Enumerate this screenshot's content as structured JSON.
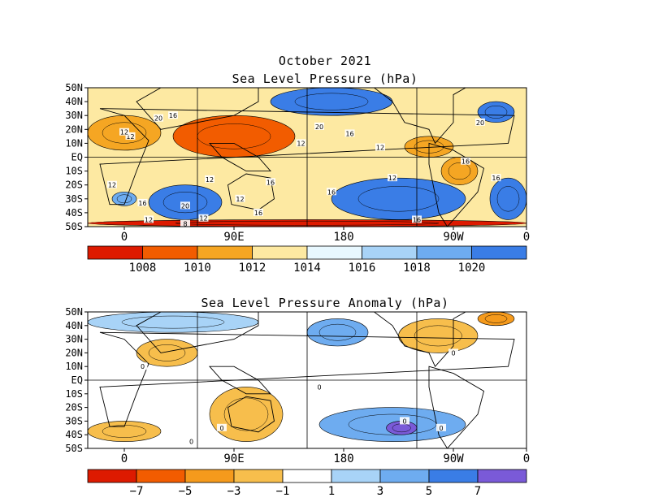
{
  "titles": {
    "line1": "October 2021",
    "line2": "Sea Level Pressure (hPa)",
    "anomaly": "Sea Level Pressure Anomaly (hPa)"
  },
  "chart_data": [
    {
      "type": "heatmap",
      "title": "Sea Level Pressure (hPa)",
      "subtitle": "October 2021",
      "x_ticks": [
        "0",
        "90E",
        "180",
        "90W",
        "0"
      ],
      "y_ticks": [
        "50N",
        "40N",
        "30N",
        "20N",
        "10N",
        "EQ",
        "10S",
        "20S",
        "30S",
        "40S",
        "50S"
      ],
      "xlim": [
        0,
        360
      ],
      "ylim": [
        -50,
        50
      ],
      "colorbar": {
        "labels": [
          "1008",
          "1010",
          "1012",
          "1014",
          "1016",
          "1018",
          "1020"
        ],
        "colors": [
          "#dd1a00",
          "#f25c00",
          "#f5a623",
          "#fde9a2",
          "#e8f8ff",
          "#a8d3f7",
          "#6eacf0",
          "#3a7de6"
        ]
      },
      "contour_labels": [
        "12",
        "20",
        "16",
        "12",
        "20",
        "16",
        "12",
        "12",
        "12",
        "12",
        "16",
        "12",
        "16",
        "20",
        "16",
        "12",
        "16",
        "16",
        "20",
        "16",
        "16",
        "12",
        "12",
        "8"
      ],
      "regions": [
        {
          "lon": [
            150,
            250
          ],
          "lat": [
            30,
            50
          ],
          "value": 1020
        },
        {
          "lon": [
            200,
            310
          ],
          "lat": [
            -45,
            -15
          ],
          "value": 1020
        },
        {
          "lon": [
            330,
            360
          ],
          "lat": [
            -45,
            -15
          ],
          "value": 1020
        },
        {
          "lon": [
            50,
            110
          ],
          "lat": [
            -45,
            -20
          ],
          "value": 1020
        },
        {
          "lon": [
            20,
            40
          ],
          "lat": [
            -35,
            -25
          ],
          "value": 1018
        },
        {
          "lon": [
            320,
            350
          ],
          "lat": [
            25,
            40
          ],
          "value": 1020
        },
        {
          "lon": [
            0,
            60
          ],
          "lat": [
            5,
            30
          ],
          "value": 1010
        },
        {
          "lon": [
            70,
            170
          ],
          "lat": [
            0,
            30
          ],
          "value": 1009
        },
        {
          "lon": [
            260,
            300
          ],
          "lat": [
            0,
            15
          ],
          "value": 1010
        },
        {
          "lon": [
            290,
            320
          ],
          "lat": [
            -20,
            0
          ],
          "value": 1011
        },
        {
          "lon": [
            0,
            360
          ],
          "lat": [
            -50,
            -45
          ],
          "value": 1006
        }
      ]
    },
    {
      "type": "heatmap",
      "title": "Sea Level Pressure Anomaly (hPa)",
      "x_ticks": [
        "0",
        "90E",
        "180",
        "90W",
        "0"
      ],
      "y_ticks": [
        "50N",
        "40N",
        "30N",
        "20N",
        "10N",
        "EQ",
        "10S",
        "20S",
        "30S",
        "40S",
        "50S"
      ],
      "xlim": [
        0,
        360
      ],
      "ylim": [
        -50,
        50
      ],
      "colorbar": {
        "labels": [
          "−7",
          "−5",
          "−3",
          "−1",
          "1",
          "3",
          "5",
          "7"
        ],
        "colors": [
          "#dd1a00",
          "#f25c00",
          "#f59a1c",
          "#f7be4c",
          "#ffffff",
          "#a8d3f7",
          "#6eacf0",
          "#3a7de6",
          "#7a5ad8"
        ]
      },
      "contour_labels": [
        "0",
        "0",
        "0",
        "0",
        "0",
        "0",
        "0"
      ],
      "regions": [
        {
          "lon": [
            0,
            140
          ],
          "lat": [
            35,
            50
          ],
          "value": 1.5
        },
        {
          "lon": [
            180,
            230
          ],
          "lat": [
            25,
            45
          ],
          "value": 3
        },
        {
          "lon": [
            320,
            350
          ],
          "lat": [
            40,
            50
          ],
          "value": -5
        },
        {
          "lon": [
            255,
            320
          ],
          "lat": [
            20,
            45
          ],
          "value": -2
        },
        {
          "lon": [
            40,
            90
          ],
          "lat": [
            10,
            30
          ],
          "value": -1.5
        },
        {
          "lon": [
            100,
            160
          ],
          "lat": [
            -45,
            -5
          ],
          "value": -2
        },
        {
          "lon": [
            190,
            310
          ],
          "lat": [
            -45,
            -20
          ],
          "value": 3
        },
        {
          "lon": [
            245,
            270
          ],
          "lat": [
            -40,
            -30
          ],
          "value": 7
        },
        {
          "lon": [
            0,
            60
          ],
          "lat": [
            -45,
            -30
          ],
          "value": -1.5
        }
      ]
    }
  ]
}
